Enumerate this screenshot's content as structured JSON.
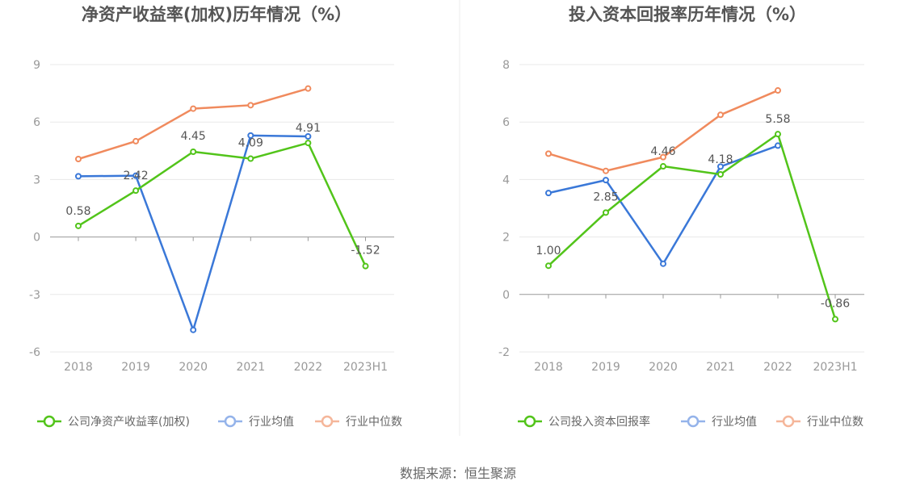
{
  "source_text": "数据来源：恒生聚源",
  "chart_data": [
    {
      "type": "line",
      "title": "净资产收益率(加权)历年情况（%）",
      "categories": [
        "2018",
        "2019",
        "2020",
        "2021",
        "2022",
        "2023H1"
      ],
      "ylim": [
        -6,
        9
      ],
      "yticks": [
        9,
        6,
        3,
        0,
        -3,
        -6
      ],
      "grid": true,
      "legend_position": "bottom",
      "series": [
        {
          "name": "公司净资产收益率(加权)",
          "color": "#52c41a",
          "values": [
            0.58,
            2.42,
            4.45,
            4.09,
            4.91,
            -1.52
          ],
          "labels": [
            "0.58",
            "2.42",
            "4.45",
            "4.09",
            "4.91",
            "-1.52"
          ]
        },
        {
          "name": "行业均值",
          "color": "#3a78d8",
          "values": [
            3.17,
            3.2,
            -4.85,
            5.3,
            5.25,
            null
          ]
        },
        {
          "name": "行业中位数",
          "color": "#f08a5d",
          "values": [
            4.07,
            5.0,
            6.7,
            6.88,
            7.75,
            null
          ]
        }
      ]
    },
    {
      "type": "line",
      "title": "投入资本回报率历年情况（%）",
      "categories": [
        "2018",
        "2019",
        "2020",
        "2021",
        "2022",
        "2023H1"
      ],
      "ylim": [
        -2,
        8
      ],
      "yticks": [
        8,
        6,
        4,
        2,
        0,
        -2
      ],
      "grid": true,
      "legend_position": "bottom",
      "series": [
        {
          "name": "公司投入资本回报率",
          "color": "#52c41a",
          "values": [
            1.0,
            2.85,
            4.46,
            4.18,
            5.58,
            -0.86
          ],
          "labels": [
            "1.00",
            "2.85",
            "4.46",
            "4.18",
            "5.58",
            "-0.86"
          ]
        },
        {
          "name": "行业均值",
          "color": "#3a78d8",
          "values": [
            3.53,
            3.98,
            1.07,
            4.45,
            5.18,
            null
          ]
        },
        {
          "name": "行业中位数",
          "color": "#f08a5d",
          "values": [
            4.9,
            4.3,
            4.78,
            6.25,
            7.1,
            null
          ]
        }
      ]
    }
  ]
}
